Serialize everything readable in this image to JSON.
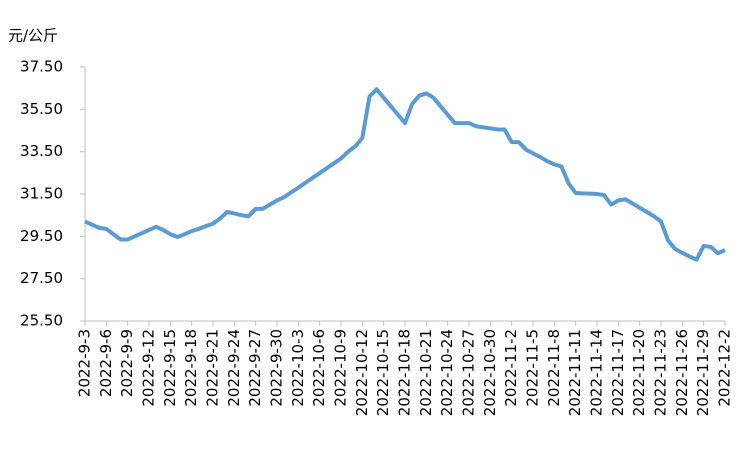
{
  "chart_data": {
    "type": "line",
    "y_label": "元/公斤",
    "categories": [
      "2022-9-3",
      null,
      null,
      "2022-9-6",
      null,
      null,
      "2022-9-9",
      null,
      null,
      "2022-9-12",
      null,
      null,
      "2022-9-15",
      null,
      null,
      "2022-9-18",
      null,
      null,
      "2022-9-21",
      null,
      null,
      "2022-9-24",
      null,
      null,
      "2022-9-27",
      null,
      null,
      "2022-9-30",
      null,
      null,
      "2022-10-3",
      null,
      null,
      "2022-10-6",
      null,
      null,
      "2022-10-9",
      null,
      null,
      "2022-10-12",
      null,
      null,
      "2022-10-15",
      null,
      null,
      "2022-10-18",
      null,
      null,
      "2022-10-21",
      null,
      null,
      "2022-10-24",
      null,
      null,
      "2022-10-27",
      null,
      null,
      "2022-10-30",
      null,
      null,
      "2022-11-2",
      null,
      null,
      "2022-11-5",
      null,
      null,
      "2022-11-8",
      null,
      null,
      "2022-11-11",
      null,
      null,
      "2022-11-14",
      null,
      null,
      "2022-11-17",
      null,
      null,
      "2022-11-20",
      null,
      null,
      "2022-11-23",
      null,
      null,
      "2022-11-26",
      null,
      null,
      "2022-11-29",
      null,
      null,
      "2022-12-2"
    ],
    "values": [
      30.2,
      30.05,
      29.9,
      29.85,
      29.6,
      29.35,
      29.35,
      29.5,
      29.65,
      29.8,
      29.95,
      29.8,
      29.6,
      29.47,
      29.6,
      29.75,
      29.85,
      29.98,
      30.1,
      30.35,
      30.65,
      30.58,
      30.5,
      30.45,
      30.8,
      30.8,
      31.0,
      31.2,
      31.35,
      31.58,
      31.8,
      32.03,
      32.26,
      32.49,
      32.72,
      32.95,
      33.18,
      33.5,
      33.75,
      34.15,
      36.1,
      36.45,
      36.05,
      35.65,
      35.25,
      34.85,
      35.75,
      36.15,
      36.25,
      36.05,
      35.65,
      35.25,
      34.85,
      34.85,
      34.85,
      34.7,
      34.65,
      34.6,
      34.55,
      34.55,
      33.95,
      33.95,
      33.6,
      33.42,
      33.25,
      33.05,
      32.9,
      32.8,
      32.0,
      31.55,
      31.53,
      31.52,
      31.5,
      31.45,
      31.0,
      31.2,
      31.25,
      31.05,
      30.85,
      30.65,
      30.45,
      30.2,
      29.3,
      28.9,
      28.72,
      28.55,
      28.4,
      29.05,
      29.0,
      28.7,
      28.85
    ],
    "color": "#5b9bd5",
    "ylim": [
      25.5,
      37.5
    ],
    "yticks": [
      {
        "value": 25.5,
        "label": "25.50"
      },
      {
        "value": 27.5,
        "label": "27.50"
      },
      {
        "value": 29.5,
        "label": "29.50"
      },
      {
        "value": 31.5,
        "label": "31.50"
      },
      {
        "value": 33.5,
        "label": "33.50"
      },
      {
        "value": 35.5,
        "label": "35.50"
      },
      {
        "value": 37.5,
        "label": "37.50"
      }
    ]
  }
}
